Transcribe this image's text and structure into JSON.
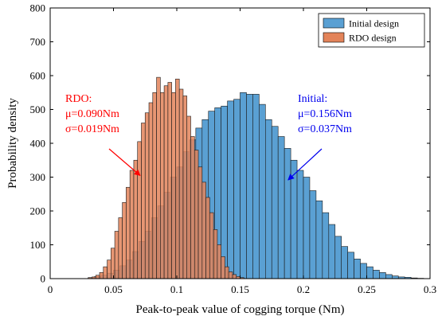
{
  "chart_data": {
    "type": "bar",
    "subtype": "overlapping-histogram",
    "xlabel": "Peak-to-peak value of cogging torque (Nm)",
    "ylabel": "Probability density",
    "xlim": [
      0,
      0.3
    ],
    "ylim": [
      0,
      800
    ],
    "x_ticks": [
      0,
      0.05,
      0.1,
      0.15,
      0.2,
      0.25,
      0.3
    ],
    "x_tick_labels": [
      "0",
      "0.05",
      "0.1",
      "0.15",
      "0.2",
      "0.25",
      "0.3"
    ],
    "y_ticks": [
      0,
      100,
      200,
      300,
      400,
      500,
      600,
      700,
      800
    ],
    "y_tick_labels": [
      "0",
      "100",
      "200",
      "300",
      "400",
      "500",
      "600",
      "700",
      "800"
    ],
    "grid": false,
    "legend_position": "top-right",
    "series": [
      {
        "name": "Initial design",
        "color": "#5aa0d3",
        "bin_start": 0.03,
        "bin_width": 0.005,
        "values": [
          3,
          6,
          10,
          16,
          25,
          38,
          55,
          80,
          110,
          140,
          180,
          215,
          255,
          300,
          330,
          375,
          410,
          445,
          470,
          495,
          505,
          510,
          525,
          530,
          550,
          545,
          545,
          515,
          470,
          450,
          420,
          385,
          350,
          320,
          300,
          260,
          230,
          195,
          160,
          125,
          95,
          78,
          58,
          45,
          35,
          25,
          18,
          12,
          8,
          5,
          4,
          2,
          1
        ]
      },
      {
        "name": "RDO design",
        "color": "#e3845a",
        "bin_start": 0.03,
        "bin_width": 0.003,
        "values": [
          3,
          5,
          10,
          18,
          35,
          55,
          90,
          140,
          180,
          225,
          270,
          320,
          350,
          405,
          460,
          490,
          520,
          550,
          595,
          550,
          570,
          580,
          550,
          590,
          560,
          540,
          480,
          420,
          380,
          330,
          285,
          240,
          195,
          145,
          100,
          65,
          35,
          20,
          12,
          6,
          3
        ]
      }
    ],
    "annotations": [
      {
        "lines": [
          "RDO:",
          "μ=0.090Nm",
          "σ=0.019Nm"
        ],
        "color": "#ff0000",
        "arrow_to": [
          0.071,
          305
        ]
      },
      {
        "lines": [
          "Initial:",
          "μ=0.156Nm",
          "σ=0.037Nm"
        ],
        "color": "#0000ee",
        "arrow_to": [
          0.188,
          292
        ]
      }
    ]
  }
}
